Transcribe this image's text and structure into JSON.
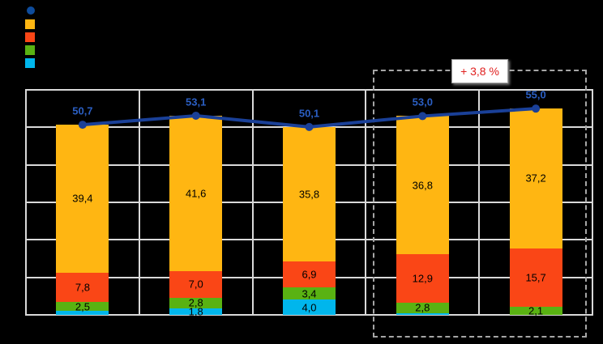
{
  "background": "#000000",
  "colors": {
    "grid": "#D9D9D9",
    "highlight_border": "#A6A6A6",
    "segment_label": "#000000"
  },
  "legend": {
    "items": [
      {
        "name": "total-line",
        "marker": "circle",
        "color": "#0E4C9C"
      },
      {
        "name": "series-orange",
        "marker": "square",
        "color": "#FFB612"
      },
      {
        "name": "series-red",
        "marker": "square",
        "color": "#FA4616"
      },
      {
        "name": "series-green",
        "marker": "square",
        "color": "#59B212"
      },
      {
        "name": "series-cyan",
        "marker": "square",
        "color": "#00B6EC"
      }
    ]
  },
  "annotation": {
    "label": "+ 3,8 %",
    "text_color": "#E0201F",
    "background": "#FFFFFF",
    "border_color": "#9B9B9B"
  },
  "chart_data": {
    "type": "stacked-bar-with-line",
    "n_categories": 5,
    "categories": [
      "",
      "",
      "",
      "",
      ""
    ],
    "series": [
      {
        "name": "cyan",
        "color": "#00B6EC",
        "values": [
          1.0,
          1.8,
          4.0,
          0.5,
          0.0
        ],
        "labels": [
          null,
          "1,8",
          "4,0",
          null,
          null
        ]
      },
      {
        "name": "green",
        "color": "#59B212",
        "values": [
          2.5,
          2.8,
          3.4,
          2.8,
          2.1
        ],
        "labels": [
          "2,5",
          "2,8",
          "3,4",
          "2,8",
          "2,1"
        ]
      },
      {
        "name": "red",
        "color": "#FA4616",
        "values": [
          7.8,
          7.0,
          6.9,
          12.9,
          15.7
        ],
        "labels": [
          "7,8",
          "7,0",
          "6,9",
          "12,9",
          "15,7"
        ]
      },
      {
        "name": "orange",
        "color": "#FFB612",
        "values": [
          39.4,
          41.6,
          35.8,
          36.8,
          37.2
        ],
        "labels": [
          "39,4",
          "41,6",
          "35,8",
          "36,8",
          "37,2"
        ]
      }
    ],
    "line": {
      "name": "total",
      "color": "#1A4098",
      "label_color": "#2B5FC4",
      "values": [
        50.7,
        53.1,
        50.1,
        53.0,
        55.0
      ],
      "labels": [
        "50,7",
        "53,1",
        "50,1",
        "53,0",
        "55,0"
      ]
    },
    "ylim": [
      0,
      60
    ],
    "y_step": 10,
    "grid": true,
    "legend_position": "top-left",
    "highlight": {
      "from_category": 3,
      "to_category": 4,
      "annotation": "+ 3,8 %"
    }
  }
}
